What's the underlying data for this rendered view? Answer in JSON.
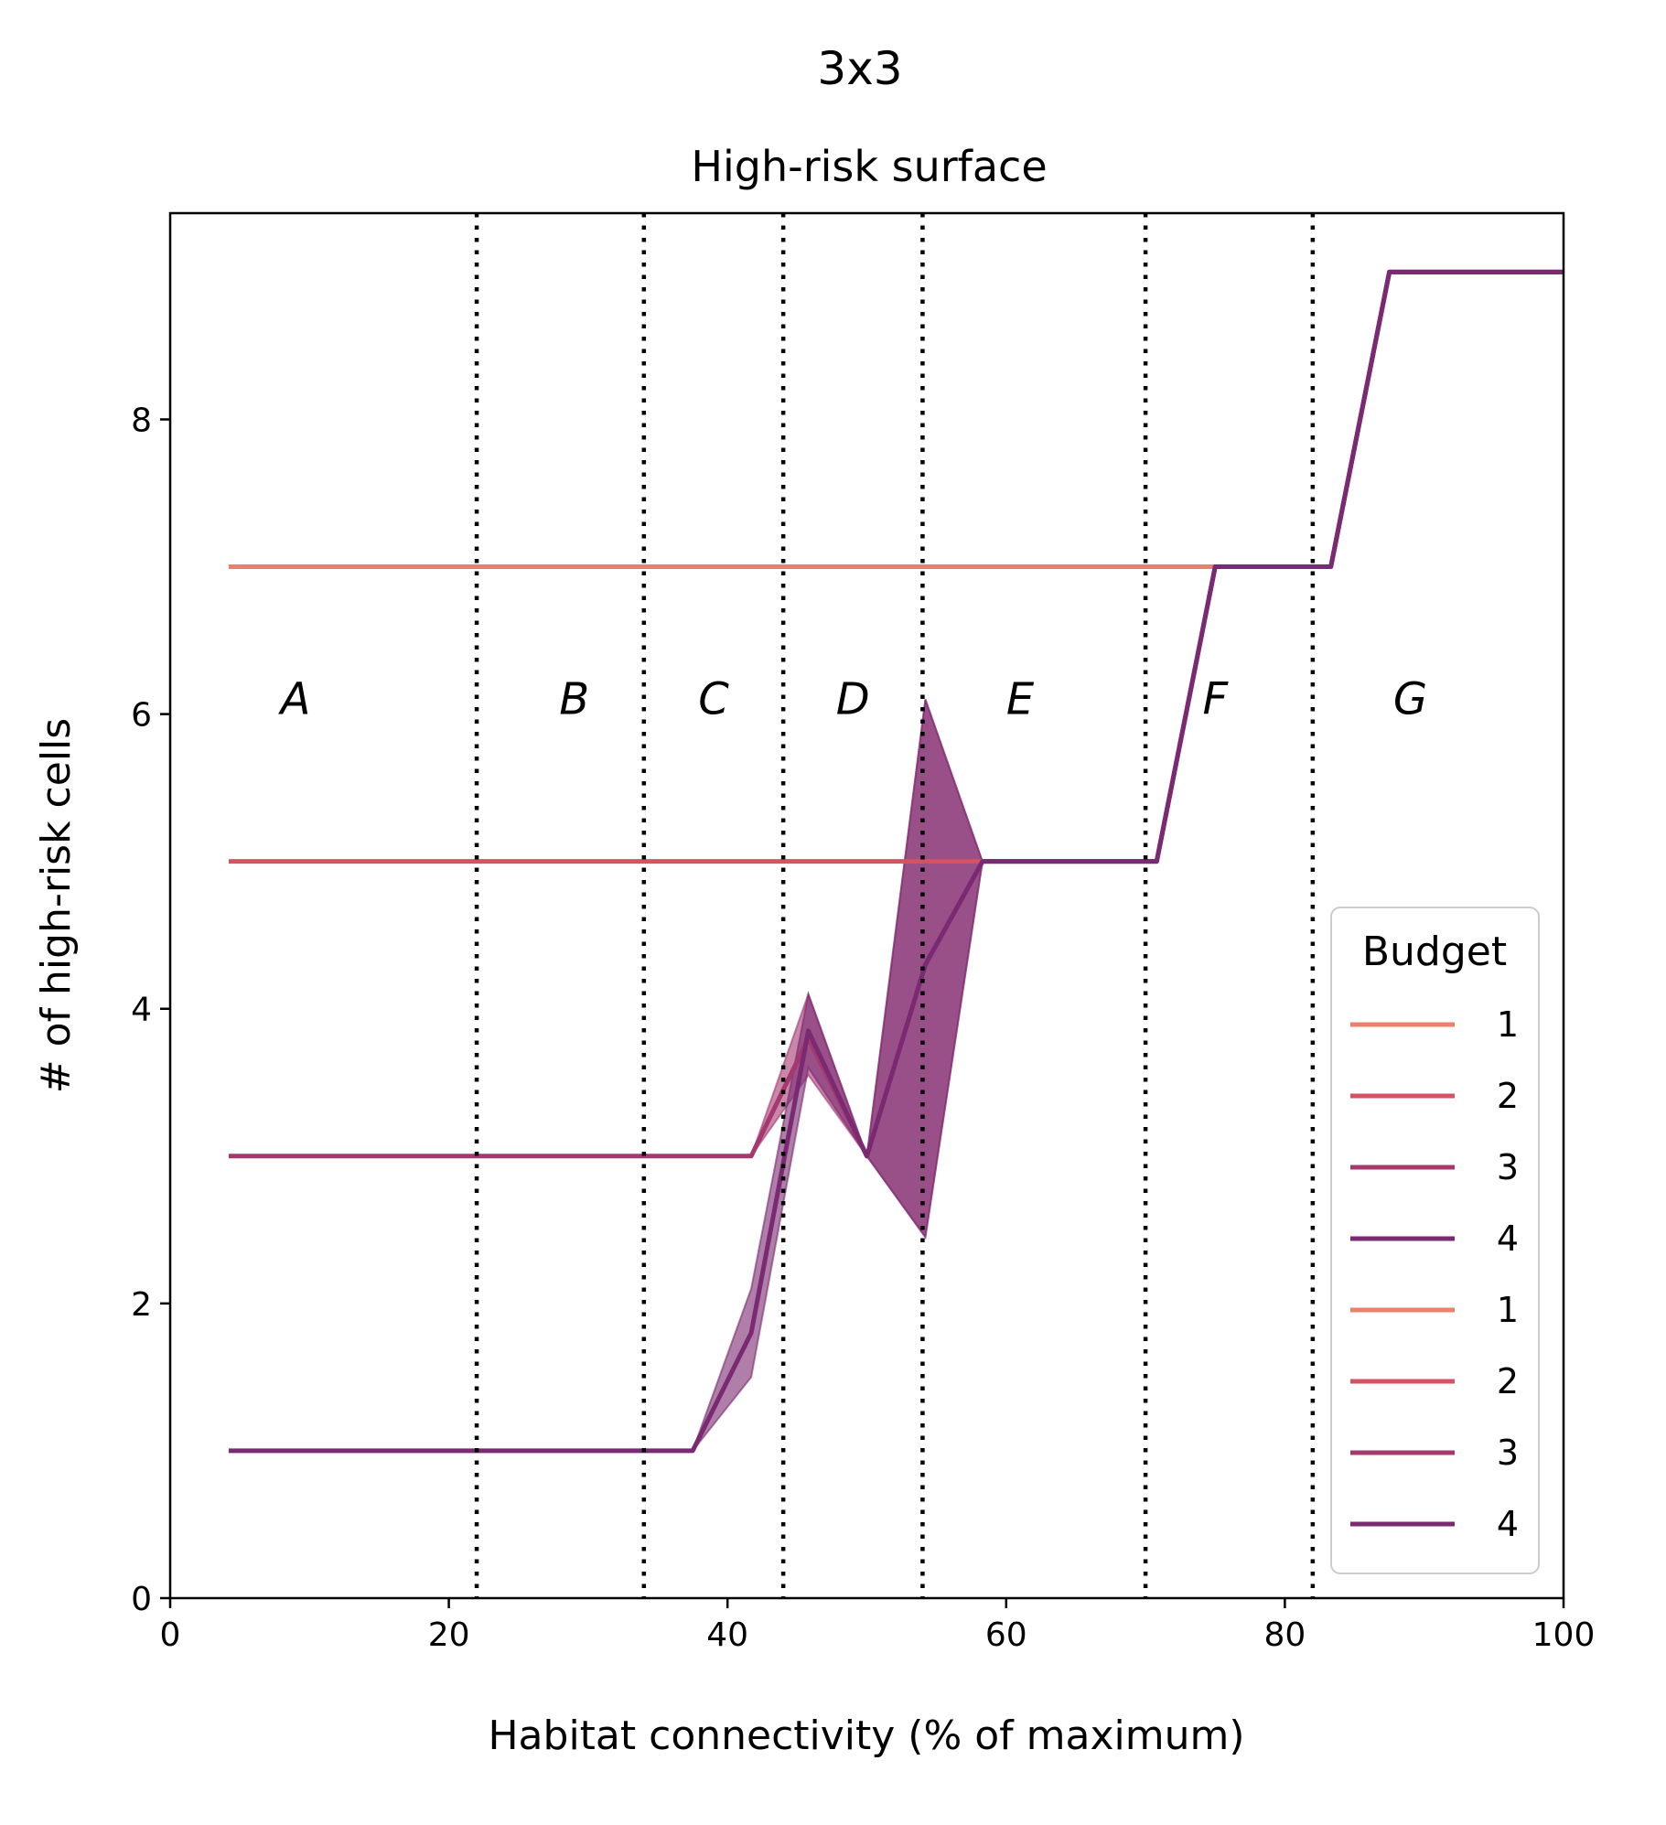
{
  "figure": {
    "suptitle": "3x3"
  },
  "chart_data": {
    "type": "line",
    "title": "High-risk surface",
    "xlabel": "Habitat connectivity (% of maximum)",
    "ylabel": "# of high-risk cells",
    "xlim": [
      0,
      100
    ],
    "ylim": [
      0,
      9.4
    ],
    "xticks": [
      0,
      20,
      40,
      60,
      80,
      100
    ],
    "yticks": [
      0,
      2,
      4,
      6,
      8
    ],
    "grid": false,
    "vlines": [
      22,
      34,
      44,
      54,
      70,
      82
    ],
    "regions": [
      {
        "label": "A",
        "x": 9,
        "y": 6.1
      },
      {
        "label": "B",
        "x": 29,
        "y": 6.1
      },
      {
        "label": "C",
        "x": 39,
        "y": 6.1
      },
      {
        "label": "D",
        "x": 49,
        "y": 6.1
      },
      {
        "label": "E",
        "x": 61,
        "y": 6.1
      },
      {
        "label": "F",
        "x": 75,
        "y": 6.1
      },
      {
        "label": "G",
        "x": 89,
        "y": 6.1
      }
    ],
    "series": [
      {
        "name": "1",
        "color": "#e8806a",
        "x": [
          4.2,
          75.0,
          83.3,
          87.5,
          100
        ],
        "y": [
          7,
          7,
          7,
          9,
          9
        ]
      },
      {
        "name": "2",
        "color": "#d65261",
        "x": [
          4.2,
          58.3,
          70.8,
          75.0,
          83.3,
          87.5,
          100
        ],
        "y": [
          5,
          5,
          5,
          7,
          7,
          9,
          9
        ]
      },
      {
        "name": "3",
        "color": "#a5386f",
        "x": [
          4.2,
          41.7,
          45.8,
          50.0,
          54.2,
          58.3,
          70.8,
          75.0,
          83.3,
          87.5,
          100
        ],
        "y": [
          3,
          3,
          3.8,
          3,
          4.3,
          5,
          5,
          7,
          7,
          9,
          9
        ],
        "band_lower": [
          3,
          3,
          3.55,
          3,
          2.45,
          5,
          5,
          7,
          7,
          9,
          9
        ],
        "band_upper": [
          3,
          3,
          4.1,
          3,
          6.1,
          5,
          5,
          7,
          7,
          9,
          9
        ]
      },
      {
        "name": "4",
        "color": "#7a2a72",
        "x": [
          4.2,
          37.5,
          41.7,
          45.8,
          50.0,
          54.2,
          58.3,
          70.8,
          75.0,
          83.3,
          87.5,
          100
        ],
        "y": [
          1,
          1,
          1.8,
          3.85,
          3,
          4.3,
          5,
          5,
          7,
          7,
          9,
          9
        ],
        "band_lower": [
          1,
          1,
          1.5,
          3.6,
          3,
          2.45,
          5,
          5,
          7,
          7,
          9,
          9
        ],
        "band_upper": [
          1,
          1,
          2.1,
          4.1,
          3,
          6.1,
          5,
          5,
          7,
          7,
          9,
          9
        ]
      }
    ],
    "legend": {
      "title": "Budget",
      "placement": "lower-right",
      "entries": [
        {
          "label": "1",
          "color": "#e8806a"
        },
        {
          "label": "2",
          "color": "#d65261"
        },
        {
          "label": "3",
          "color": "#a5386f"
        },
        {
          "label": "4",
          "color": "#7a2a72"
        },
        {
          "label": "1",
          "color": "#e8806a"
        },
        {
          "label": "2",
          "color": "#d65261"
        },
        {
          "label": "3",
          "color": "#a5386f"
        },
        {
          "label": "4",
          "color": "#7a2a72"
        }
      ]
    }
  }
}
